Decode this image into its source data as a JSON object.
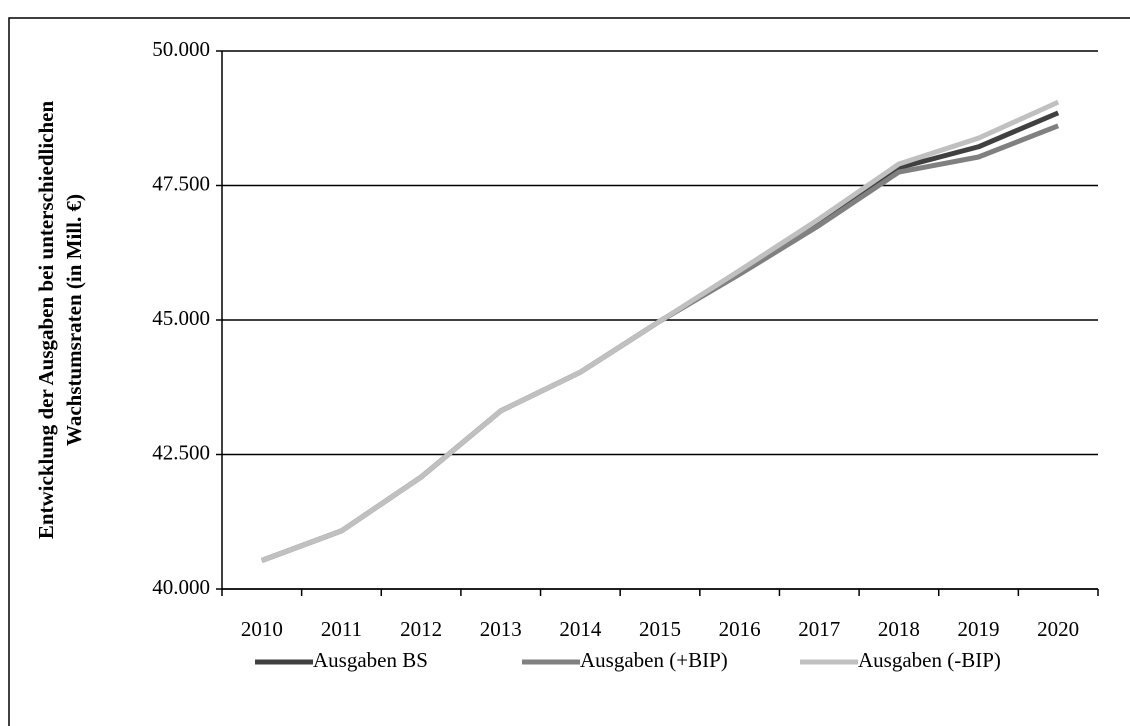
{
  "chart_data": {
    "type": "line",
    "y_label": [
      "Entwicklung der Ausgaben bei unterschiedlichen",
      "Wachstumsraten (in Mill. €)"
    ],
    "categories": [
      "2010",
      "2011",
      "2012",
      "2013",
      "2014",
      "2015",
      "2016",
      "2017",
      "2018",
      "2019",
      "2020"
    ],
    "series": [
      {
        "name": "Ausgaben BS",
        "color": "#404040",
        "values": [
          40530,
          41080,
          42080,
          43310,
          44030,
          44980,
          45870,
          46800,
          47830,
          48220,
          48850
        ]
      },
      {
        "name": "Ausgaben (+BIP)",
        "color": "#808080",
        "values": [
          40530,
          41080,
          42080,
          43310,
          44030,
          44980,
          45850,
          46760,
          47750,
          48030,
          48610
        ]
      },
      {
        "name": "Ausgaben (-BIP)",
        "color": "#c0c0c0",
        "values": [
          40530,
          41080,
          42080,
          43310,
          44030,
          44980,
          45920,
          46880,
          47900,
          48380,
          49050
        ]
      }
    ],
    "ylim": [
      40000,
      50000
    ],
    "yticks": [
      {
        "value": 40000,
        "label": "40.000"
      },
      {
        "value": 42500,
        "label": "42.500"
      },
      {
        "value": 45000,
        "label": "45.000"
      },
      {
        "value": 47500,
        "label": "47.500"
      },
      {
        "value": 50000,
        "label": "50.000"
      }
    ],
    "grid": true,
    "legend": "bottom"
  }
}
